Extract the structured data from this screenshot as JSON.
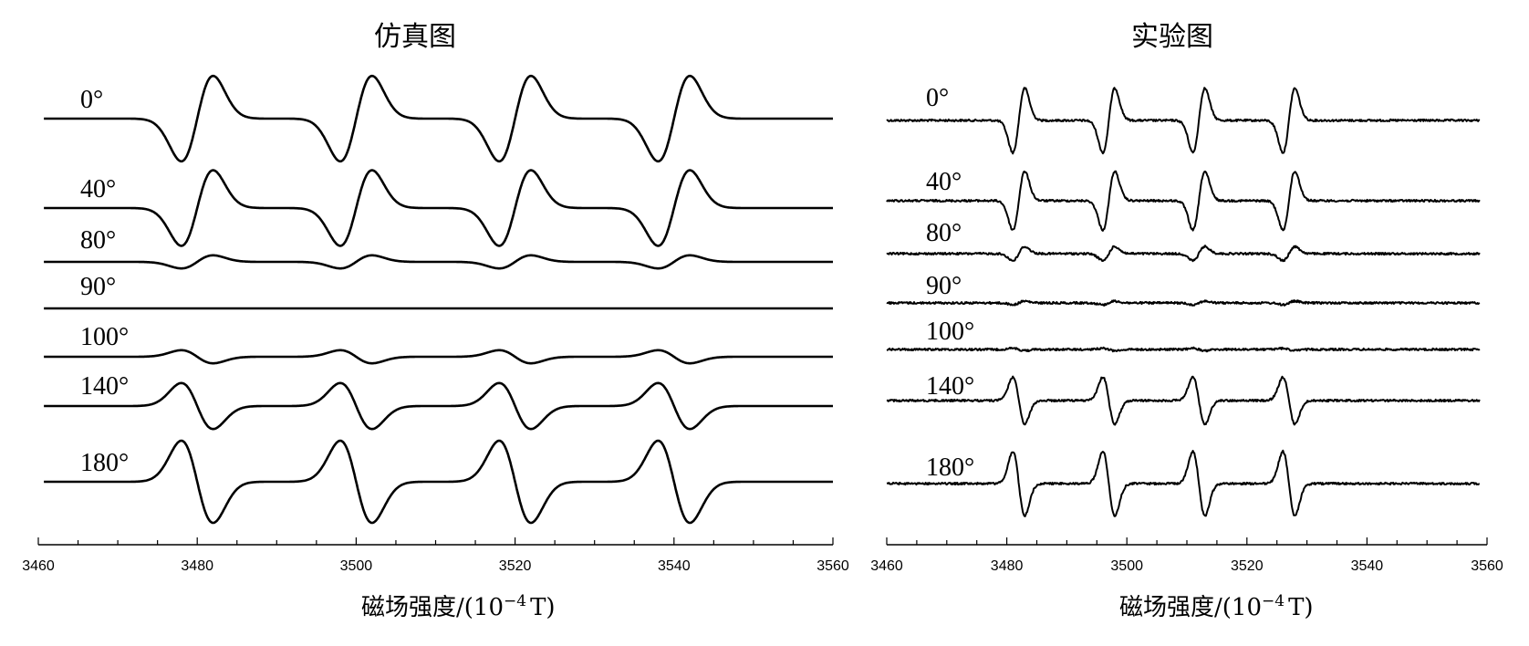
{
  "chart_data": [
    {
      "type": "line",
      "title": "仿真图",
      "xlabel_base": "磁场强度/(10",
      "xlabel_exp": "−4",
      "xlabel_unit": "T)",
      "xlim": [
        3460,
        3560
      ],
      "xticks": [
        3460,
        3480,
        3500,
        3520,
        3540,
        3560
      ],
      "grid": false,
      "lines": [
        3480,
        3500,
        3520,
        3540
      ],
      "width": 2,
      "series": [
        {
          "name": "0°",
          "amplitude": 0.52
        },
        {
          "name": "40°",
          "amplitude": 0.46
        },
        {
          "name": "80°",
          "amplitude": 0.08
        },
        {
          "name": "90°",
          "amplitude": 0.0
        },
        {
          "name": "100°",
          "amplitude": -0.08
        },
        {
          "name": "140°",
          "amplitude": -0.28
        },
        {
          "name": "180°",
          "amplitude": -0.5
        }
      ]
    },
    {
      "type": "line",
      "title": "实验图",
      "xlabel_base": "磁场强度/(10",
      "xlabel_exp": "−4",
      "xlabel_unit": "T)",
      "xlim": [
        3460,
        3560
      ],
      "xticks": [
        3460,
        3480,
        3500,
        3520,
        3540,
        3560
      ],
      "grid": false,
      "lines": [
        3482,
        3497,
        3512,
        3527
      ],
      "width": 1.0,
      "series": [
        {
          "name": "0°",
          "amplitude": 0.55
        },
        {
          "name": "40°",
          "amplitude": 0.5
        },
        {
          "name": "80°",
          "amplitude": 0.12
        },
        {
          "name": "90°",
          "amplitude": 0.03
        },
        {
          "name": "100°",
          "amplitude": -0.02
        },
        {
          "name": "140°",
          "amplitude": -0.4
        },
        {
          "name": "180°",
          "amplitude": -0.55
        }
      ]
    }
  ]
}
